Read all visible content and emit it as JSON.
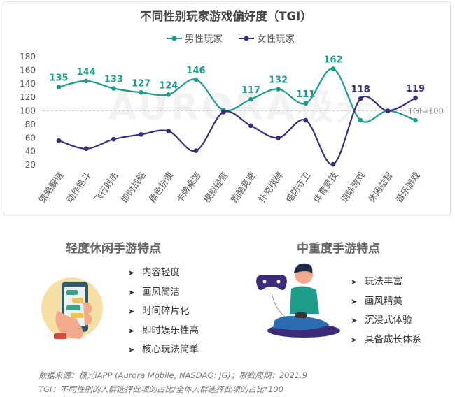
{
  "chart_data": {
    "type": "line",
    "title": "不同性别玩家游戏偏好度（TGI）",
    "legend_position": "top-center",
    "categories": [
      "策略解谜",
      "动作格斗",
      "飞行射击",
      "即时战略",
      "角色扮演",
      "卡牌桌游",
      "模拟经营",
      "跑酷竞速",
      "扑克棋牌",
      "塔防守卫",
      "体育竞技",
      "消除游戏",
      "休闲益智",
      "音乐游戏"
    ],
    "series": [
      {
        "name": "男性玩家",
        "color": "#1e9c8a",
        "values": [
          135,
          144,
          133,
          127,
          124,
          146,
          101,
          117,
          132,
          111,
          162,
          86,
          100,
          86
        ],
        "labels": [
          "135",
          "144",
          "133",
          "127",
          "124",
          "146",
          "",
          "117",
          "132",
          "111",
          "162",
          "",
          "",
          ""
        ]
      },
      {
        "name": "女性玩家",
        "color": "#3d2b7a",
        "values": [
          56,
          44,
          58,
          65,
          70,
          41,
          98,
          78,
          60,
          86,
          21,
          118,
          100,
          119
        ],
        "labels": [
          "",
          "",
          "",
          "",
          "",
          "",
          "",
          "",
          "",
          "",
          "",
          "118",
          "",
          "119"
        ]
      }
    ],
    "ylim": [
      20,
      180
    ],
    "yticks": [
      "180",
      "160",
      "140",
      "120",
      "100",
      "80",
      "60",
      "40",
      "20"
    ],
    "reference_line": {
      "value": 100,
      "label": "TGI=100"
    },
    "grid": false
  },
  "watermark": "AURORA极光",
  "left_section": {
    "title": "轻度休闲手游特点",
    "items": [
      "内容轻度",
      "画风简洁",
      "时间碎片化",
      "即时娱乐性高",
      "核心玩法简单"
    ]
  },
  "right_section": {
    "title": "中重度手游特点",
    "items": [
      "玩法丰富",
      "画风精美",
      "沉浸式体验",
      "具备成长体系"
    ]
  },
  "illustrations": {
    "left": "phone-in-hand-icon",
    "right": "gamer-with-controller-icon"
  },
  "colors": {
    "male": "#1e9c8a",
    "female": "#3d2b7a",
    "accent_bg": "#f6dfa4"
  },
  "footnotes": {
    "source": "数据来源：极光iAPP (Aurora Mobile, NASDAQ: JG)；取数周期：2021.9",
    "tgi": "TGI：不同性别的人群选择此项的占比/全体人群选择此项的占比*100"
  }
}
